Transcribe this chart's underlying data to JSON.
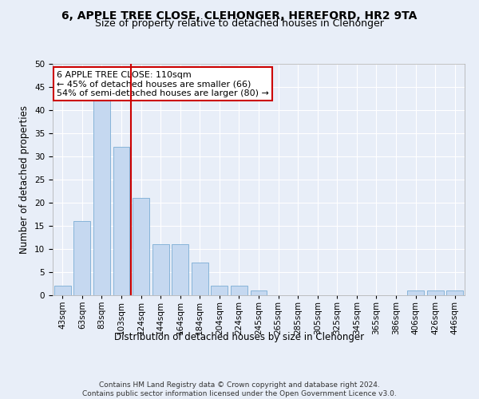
{
  "title1": "6, APPLE TREE CLOSE, CLEHONGER, HEREFORD, HR2 9TA",
  "title2": "Size of property relative to detached houses in Clehonger",
  "xlabel": "Distribution of detached houses by size in Clehonger",
  "ylabel": "Number of detached properties",
  "bar_labels": [
    "43sqm",
    "63sqm",
    "83sqm",
    "103sqm",
    "124sqm",
    "144sqm",
    "164sqm",
    "184sqm",
    "204sqm",
    "224sqm",
    "245sqm",
    "265sqm",
    "285sqm",
    "305sqm",
    "325sqm",
    "345sqm",
    "365sqm",
    "386sqm",
    "406sqm",
    "426sqm",
    "446sqm"
  ],
  "bar_values": [
    2,
    16,
    42,
    32,
    21,
    11,
    11,
    7,
    2,
    2,
    1,
    0,
    0,
    0,
    0,
    0,
    0,
    0,
    1,
    1,
    1
  ],
  "bar_color": "#c5d8f0",
  "bar_edge_color": "#7aadd4",
  "vline_x": 3.5,
  "vline_color": "#cc0000",
  "annotation_text": "6 APPLE TREE CLOSE: 110sqm\n← 45% of detached houses are smaller (66)\n54% of semi-detached houses are larger (80) →",
  "annotation_box_color": "#ffffff",
  "annotation_box_edge_color": "#cc0000",
  "ylim": [
    0,
    50
  ],
  "yticks": [
    0,
    5,
    10,
    15,
    20,
    25,
    30,
    35,
    40,
    45,
    50
  ],
  "footnote": "Contains HM Land Registry data © Crown copyright and database right 2024.\nContains public sector information licensed under the Open Government Licence v3.0.",
  "background_color": "#e8eef8",
  "grid_color": "#ffffff",
  "title_fontsize": 10,
  "subtitle_fontsize": 9,
  "axis_label_fontsize": 8.5,
  "tick_fontsize": 7.5,
  "annotation_fontsize": 8,
  "footnote_fontsize": 6.5
}
